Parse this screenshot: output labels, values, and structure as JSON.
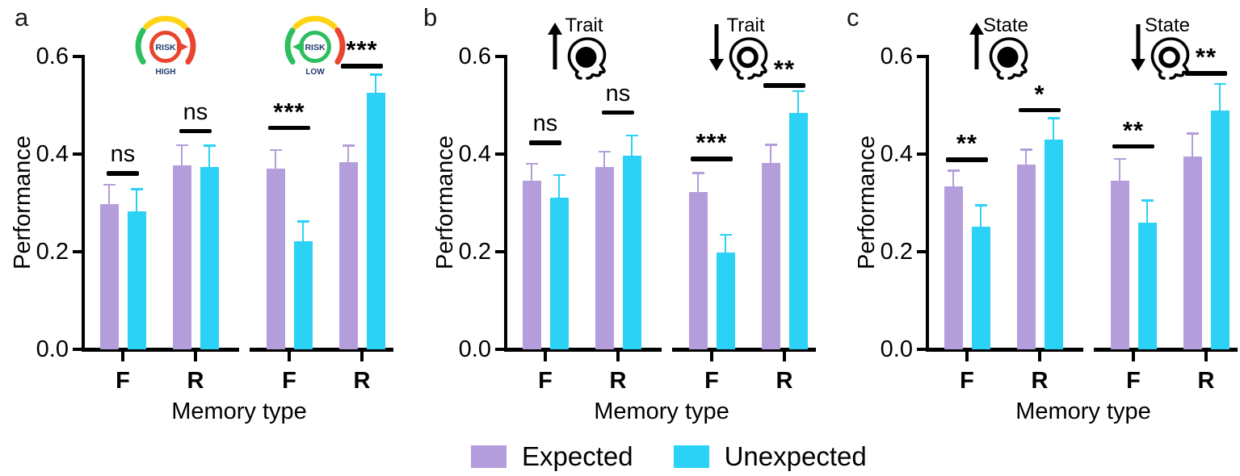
{
  "figure": {
    "background": "#ffffff",
    "legend": {
      "items": [
        {
          "label": "Expected",
          "color": "#B49DDB"
        },
        {
          "label": "Unexpected",
          "color": "#2BD2F5"
        }
      ]
    }
  },
  "chart_data": [
    {
      "type": "bar",
      "panel_label": "a",
      "xlabel": "Memory type",
      "ylabel": "Performance",
      "ylim": [
        0,
        0.6
      ],
      "yticks": [
        {
          "label": "0.0",
          "value": 0.0
        },
        {
          "label": "0.2",
          "value": 0.2
        },
        {
          "label": "0.4",
          "value": 0.4
        },
        {
          "label": "0.6",
          "value": 0.6
        }
      ],
      "categories": [
        "F",
        "R"
      ],
      "series_names": [
        "Expected",
        "Unexpected"
      ],
      "subpanels": [
        {
          "condition": "high risk",
          "icon": "risk-gauge-high",
          "icon_text": {
            "center": "RISK",
            "below": "HIGH"
          },
          "series": [
            {
              "name": "Expected",
              "values": [
                0.297,
                0.377
              ],
              "errors": [
                0.04,
                0.041
              ]
            },
            {
              "name": "Unexpected",
              "values": [
                0.282,
                0.374
              ],
              "errors": [
                0.046,
                0.043
              ]
            }
          ],
          "significance": [
            {
              "category": "F",
              "label": "ns",
              "line_y": 0.365
            },
            {
              "category": "R",
              "label": "ns",
              "line_y": 0.452
            }
          ]
        },
        {
          "condition": "low risk",
          "icon": "risk-gauge-low",
          "icon_text": {
            "center": "RISK",
            "below": "LOW"
          },
          "series": [
            {
              "name": "Expected",
              "values": [
                0.37,
                0.384
              ],
              "errors": [
                0.038,
                0.033
              ]
            },
            {
              "name": "Unexpected",
              "values": [
                0.222,
                0.525
              ],
              "errors": [
                0.04,
                0.038
              ]
            }
          ],
          "significance": [
            {
              "category": "F",
              "label": "***",
              "line_y": 0.458
            },
            {
              "category": "R",
              "label": "***",
              "line_y": 0.585
            }
          ]
        }
      ]
    },
    {
      "type": "bar",
      "panel_label": "b",
      "xlabel": "Memory type",
      "ylabel": "Performance",
      "ylim": [
        0,
        0.6
      ],
      "yticks": [
        {
          "label": "0.0",
          "value": 0.0
        },
        {
          "label": "0.2",
          "value": 0.2
        },
        {
          "label": "0.4",
          "value": 0.4
        },
        {
          "label": "0.6",
          "value": 0.6
        }
      ],
      "categories": [
        "F",
        "R"
      ],
      "series_names": [
        "Expected",
        "Unexpected"
      ],
      "subpanels": [
        {
          "condition": "trait increase",
          "icon": "head-up-filled",
          "icon_text": {
            "above": "Trait"
          },
          "series": [
            {
              "name": "Expected",
              "values": [
                0.345,
                0.373
              ],
              "errors": [
                0.035,
                0.032
              ]
            },
            {
              "name": "Unexpected",
              "values": [
                0.31,
                0.397
              ],
              "errors": [
                0.047,
                0.041
              ]
            }
          ],
          "significance": [
            {
              "category": "F",
              "label": "ns",
              "line_y": 0.428
            },
            {
              "category": "R",
              "label": "ns",
              "line_y": 0.49
            }
          ]
        },
        {
          "condition": "trait decrease",
          "icon": "head-down-ring",
          "icon_text": {
            "above": "Trait"
          },
          "series": [
            {
              "name": "Expected",
              "values": [
                0.322,
                0.381
              ],
              "errors": [
                0.039,
                0.038
              ]
            },
            {
              "name": "Unexpected",
              "values": [
                0.198,
                0.485
              ],
              "errors": [
                0.037,
                0.044
              ]
            }
          ],
          "significance": [
            {
              "category": "F",
              "label": "***",
              "line_y": 0.395
            },
            {
              "category": "R",
              "label": "**",
              "line_y": 0.545
            }
          ]
        }
      ]
    },
    {
      "type": "bar",
      "panel_label": "c",
      "xlabel": "Memory type",
      "ylabel": "Performance",
      "ylim": [
        0,
        0.6
      ],
      "yticks": [
        {
          "label": "0.0",
          "value": 0.0
        },
        {
          "label": "0.2",
          "value": 0.2
        },
        {
          "label": "0.4",
          "value": 0.4
        },
        {
          "label": "0.6",
          "value": 0.6
        }
      ],
      "categories": [
        "F",
        "R"
      ],
      "series_names": [
        "Expected",
        "Unexpected"
      ],
      "subpanels": [
        {
          "condition": "state increase",
          "icon": "head-up-filled",
          "icon_text": {
            "above": "State"
          },
          "series": [
            {
              "name": "Expected",
              "values": [
                0.334,
                0.378
              ],
              "errors": [
                0.032,
                0.031
              ]
            },
            {
              "name": "Unexpected",
              "values": [
                0.251,
                0.43
              ],
              "errors": [
                0.044,
                0.044
              ]
            }
          ],
          "significance": [
            {
              "category": "F",
              "label": "**",
              "line_y": 0.393
            },
            {
              "category": "R",
              "label": "*",
              "line_y": 0.495
            }
          ]
        },
        {
          "condition": "state decrease",
          "icon": "head-down-ring",
          "icon_text": {
            "above": "State"
          },
          "series": [
            {
              "name": "Expected",
              "values": [
                0.345,
                0.395
              ],
              "errors": [
                0.045,
                0.047
              ]
            },
            {
              "name": "Unexpected",
              "values": [
                0.26,
                0.49
              ],
              "errors": [
                0.045,
                0.054
              ]
            }
          ],
          "significance": [
            {
              "category": "F",
              "label": "**",
              "line_y": 0.42
            },
            {
              "category": "R",
              "label": "**",
              "line_y": 0.57
            }
          ]
        }
      ]
    }
  ]
}
